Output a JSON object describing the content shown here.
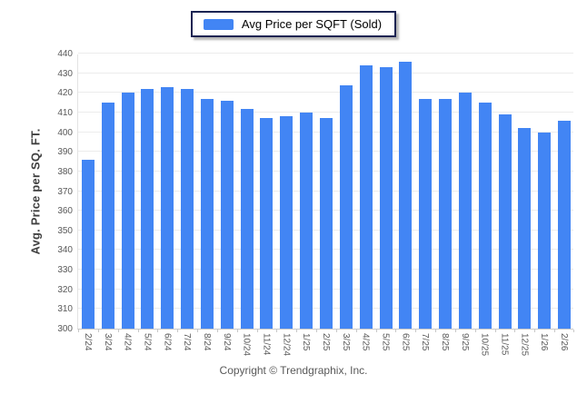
{
  "legend": {
    "label": "Avg Price per SQFT (Sold)",
    "swatch_color": "#4285f4"
  },
  "footer": {
    "copyright": "Copyright © Trendgraphix, Inc."
  },
  "colors": {
    "bar": "#4285f4",
    "gridline": "#ececec",
    "tick_text": "#595959",
    "legend_border": "#1b2452"
  },
  "chart_data": {
    "type": "bar",
    "title": "",
    "xlabel": "",
    "ylabel": "Avg. Price per SQ. FT.",
    "ylim": [
      300,
      440
    ],
    "ytick_step": 10,
    "grid": "horizontal",
    "legend_position": "top-center",
    "categories": [
      "2/24",
      "3/24",
      "4/24",
      "5/24",
      "6/24",
      "7/24",
      "8/24",
      "9/24",
      "10/24",
      "11/24",
      "12/24",
      "1/25",
      "2/25",
      "3/25",
      "4/25",
      "5/25",
      "6/25",
      "7/25",
      "8/25",
      "9/25",
      "10/25",
      "11/25",
      "12/25",
      "1/26",
      "2/26"
    ],
    "series": [
      {
        "name": "Avg Price per SQFT (Sold)",
        "color": "#4285f4",
        "values": [
          386,
          415,
          420,
          422,
          423,
          422,
          417,
          416,
          412,
          407,
          408,
          410,
          407,
          424,
          434,
          433,
          436,
          417,
          417,
          420,
          415,
          409,
          402,
          400,
          406
        ]
      }
    ]
  }
}
